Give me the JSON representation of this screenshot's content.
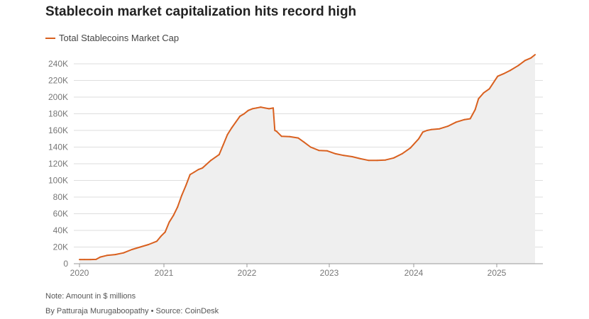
{
  "header": {
    "title": "Stablecoin market capitalization hits record high"
  },
  "footer": {
    "note": "Note: Amount in $ millions",
    "byline": "By Patturaja Murugaboopathy",
    "source": "Source: CoinDesk"
  },
  "colors": {
    "line": "#d9601f",
    "area": "#efefef",
    "grid": "#dedede",
    "axis": "#999999"
  },
  "chart_data": {
    "type": "area",
    "title": "Stablecoin market capitalization hits record high",
    "xlabel": "",
    "ylabel": "",
    "xlim": [
      2020.0,
      2025.55
    ],
    "ylim": [
      0,
      250000
    ],
    "grid": true,
    "legend_position": "top-left",
    "x_ticks": [
      {
        "value": 2020,
        "label": "2020"
      },
      {
        "value": 2021,
        "label": "2021"
      },
      {
        "value": 2022,
        "label": "2022"
      },
      {
        "value": 2023,
        "label": "2023"
      },
      {
        "value": 2024,
        "label": "2024"
      },
      {
        "value": 2025,
        "label": "2025"
      }
    ],
    "y_ticks": [
      {
        "value": 0,
        "label": "0"
      },
      {
        "value": 20000,
        "label": "20K"
      },
      {
        "value": 40000,
        "label": "40K"
      },
      {
        "value": 60000,
        "label": "60K"
      },
      {
        "value": 80000,
        "label": "80K"
      },
      {
        "value": 100000,
        "label": "100K"
      },
      {
        "value": 120000,
        "label": "120K"
      },
      {
        "value": 140000,
        "label": "140K"
      },
      {
        "value": 160000,
        "label": "160K"
      },
      {
        "value": 180000,
        "label": "180K"
      },
      {
        "value": 200000,
        "label": "200K"
      },
      {
        "value": 220000,
        "label": "220K"
      },
      {
        "value": 240000,
        "label": "240K"
      }
    ],
    "series": [
      {
        "name": "Total Stablecoins Market Cap",
        "x": [
          2020.02,
          2020.08,
          2020.15,
          2020.22,
          2020.27,
          2020.35,
          2020.45,
          2020.55,
          2020.65,
          2020.75,
          2020.85,
          2020.95,
          2021.0,
          2021.05,
          2021.1,
          2021.15,
          2021.2,
          2021.25,
          2021.3,
          2021.35,
          2021.4,
          2021.45,
          2021.5,
          2021.6,
          2021.7,
          2021.75,
          2021.8,
          2021.85,
          2021.9,
          2021.95,
          2022.0,
          2022.05,
          2022.1,
          2022.15,
          2022.2,
          2022.25,
          2022.3,
          2022.35,
          2022.37,
          2022.39,
          2022.45,
          2022.55,
          2022.65,
          2022.72,
          2022.8,
          2022.9,
          2023.0,
          2023.1,
          2023.2,
          2023.3,
          2023.4,
          2023.5,
          2023.6,
          2023.7,
          2023.8,
          2023.9,
          2024.0,
          2024.1,
          2024.15,
          2024.2,
          2024.25,
          2024.35,
          2024.45,
          2024.55,
          2024.65,
          2024.72,
          2024.78,
          2024.82,
          2024.88,
          2024.95,
          2025.05,
          2025.12,
          2025.2,
          2025.3,
          2025.38,
          2025.45,
          2025.5
        ],
        "values": [
          5000,
          5000,
          5000,
          5200,
          8000,
          10000,
          11000,
          13000,
          17000,
          20000,
          23000,
          27000,
          33000,
          38000,
          50000,
          58000,
          68000,
          82000,
          94000,
          107000,
          110000,
          113000,
          115000,
          124000,
          131000,
          143000,
          155000,
          163000,
          170000,
          177000,
          180000,
          184000,
          186000,
          187000,
          188000,
          187000,
          186000,
          187000,
          160000,
          159000,
          153000,
          152500,
          151000,
          146000,
          140000,
          136000,
          135500,
          132000,
          130000,
          128500,
          126000,
          124000,
          124000,
          124500,
          127000,
          132000,
          139000,
          150000,
          158000,
          160000,
          161000,
          162000,
          165000,
          170000,
          173000,
          174000,
          185000,
          198000,
          205000,
          210000,
          225000,
          228000,
          232000,
          238000,
          244000,
          247000,
          251000
        ]
      }
    ]
  }
}
